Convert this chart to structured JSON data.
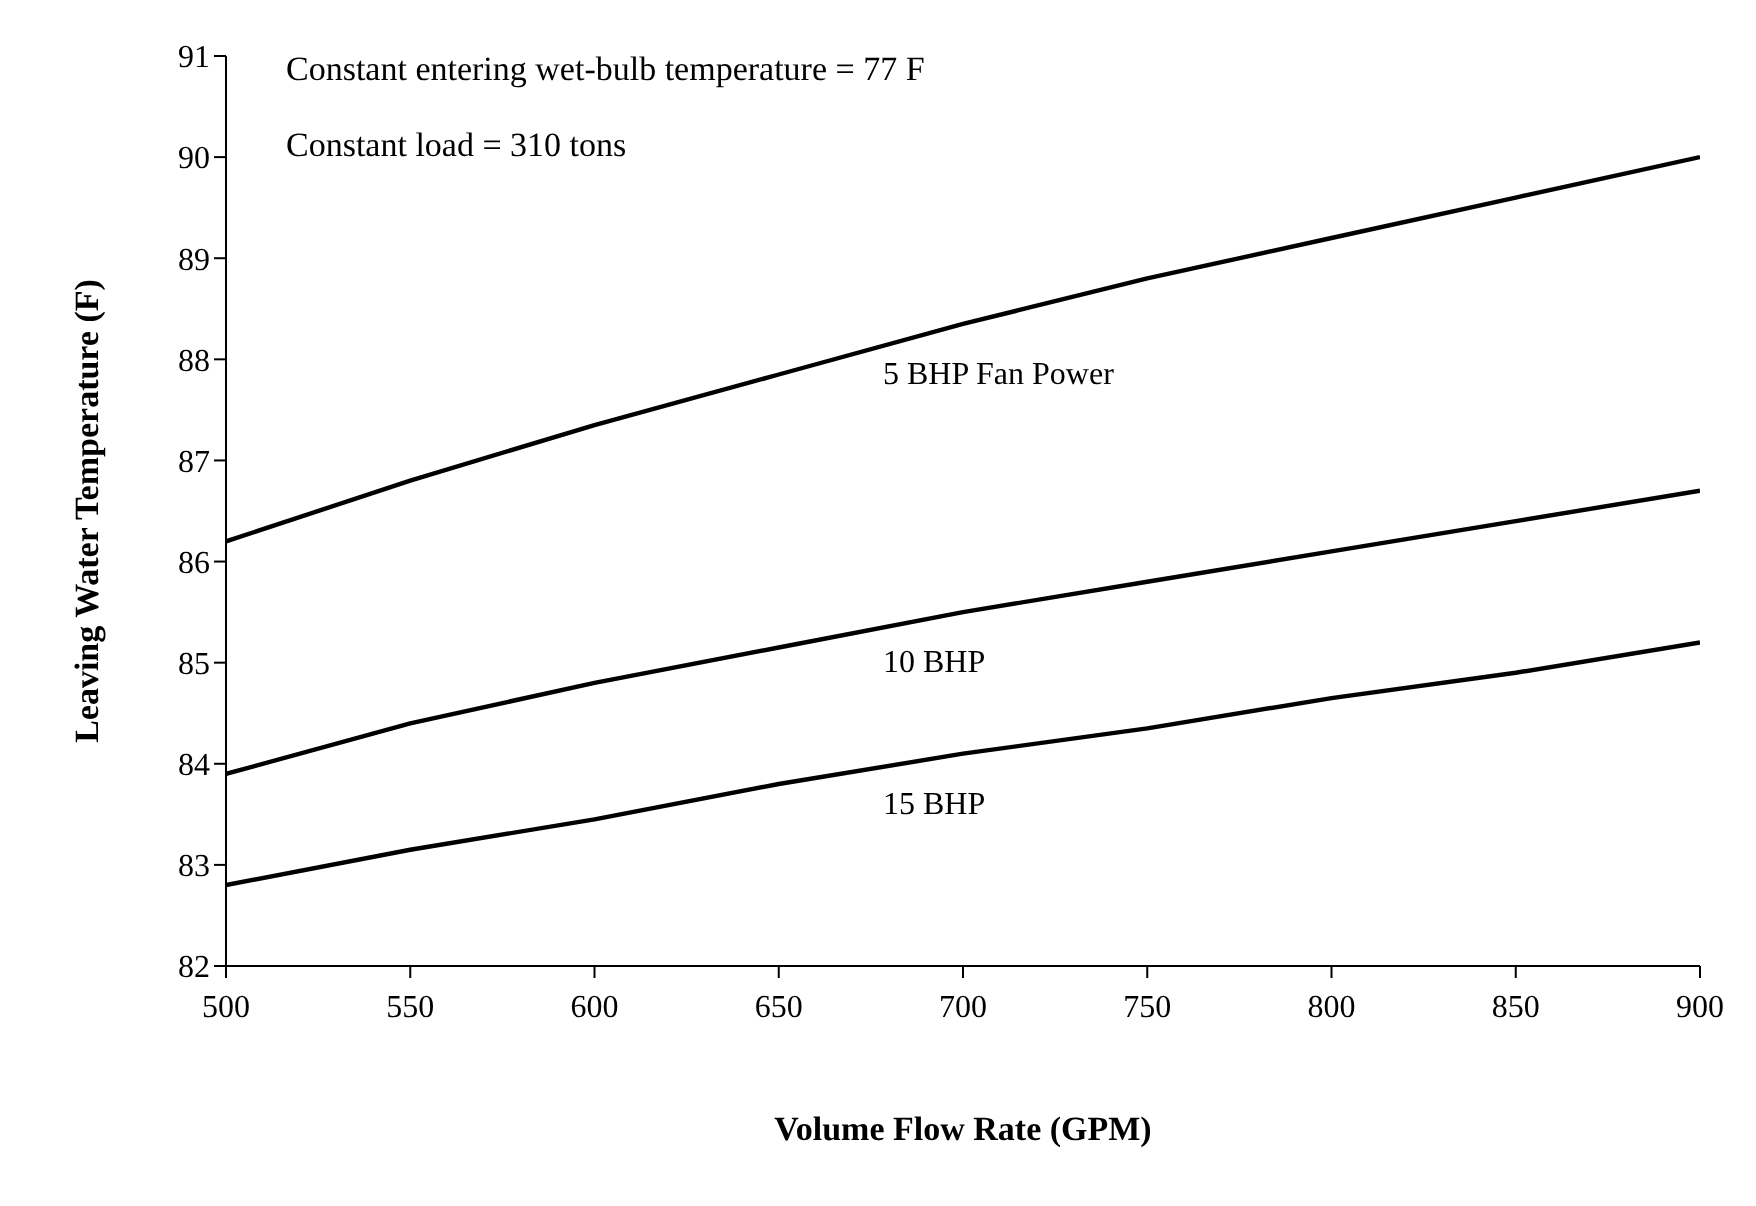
{
  "chart_data": {
    "type": "line",
    "xlabel": "Volume Flow Rate (GPM)",
    "ylabel": "Leaving Water Temperature (F)",
    "annotations": [
      "Constant entering wet-bulb temperature = 77 F",
      "Constant load = 310 tons"
    ],
    "x": [
      500,
      550,
      600,
      650,
      700,
      750,
      800,
      850,
      900
    ],
    "series": [
      {
        "name": "5 BHP  Fan Power",
        "color": "#000000",
        "values": [
          86.2,
          86.8,
          87.35,
          87.85,
          88.35,
          88.8,
          89.2,
          89.6,
          90.0
        ]
      },
      {
        "name": "10 BHP",
        "color": "#000000",
        "values": [
          83.9,
          84.4,
          84.8,
          85.15,
          85.5,
          85.8,
          86.1,
          86.4,
          86.7
        ]
      },
      {
        "name": "15 BHP",
        "color": "#000000",
        "values": [
          82.8,
          83.15,
          83.45,
          83.8,
          84.1,
          84.35,
          84.65,
          84.9,
          85.2
        ]
      }
    ],
    "xlim": [
      500,
      900
    ],
    "xticks": [
      500,
      550,
      600,
      650,
      700,
      750,
      800,
      850,
      900
    ],
    "ylim": [
      82,
      91
    ],
    "yticks": [
      82,
      83,
      84,
      85,
      86,
      87,
      88,
      89,
      90,
      91
    ],
    "grid": false,
    "legend": false,
    "marker": "none",
    "line_style": "solid"
  }
}
